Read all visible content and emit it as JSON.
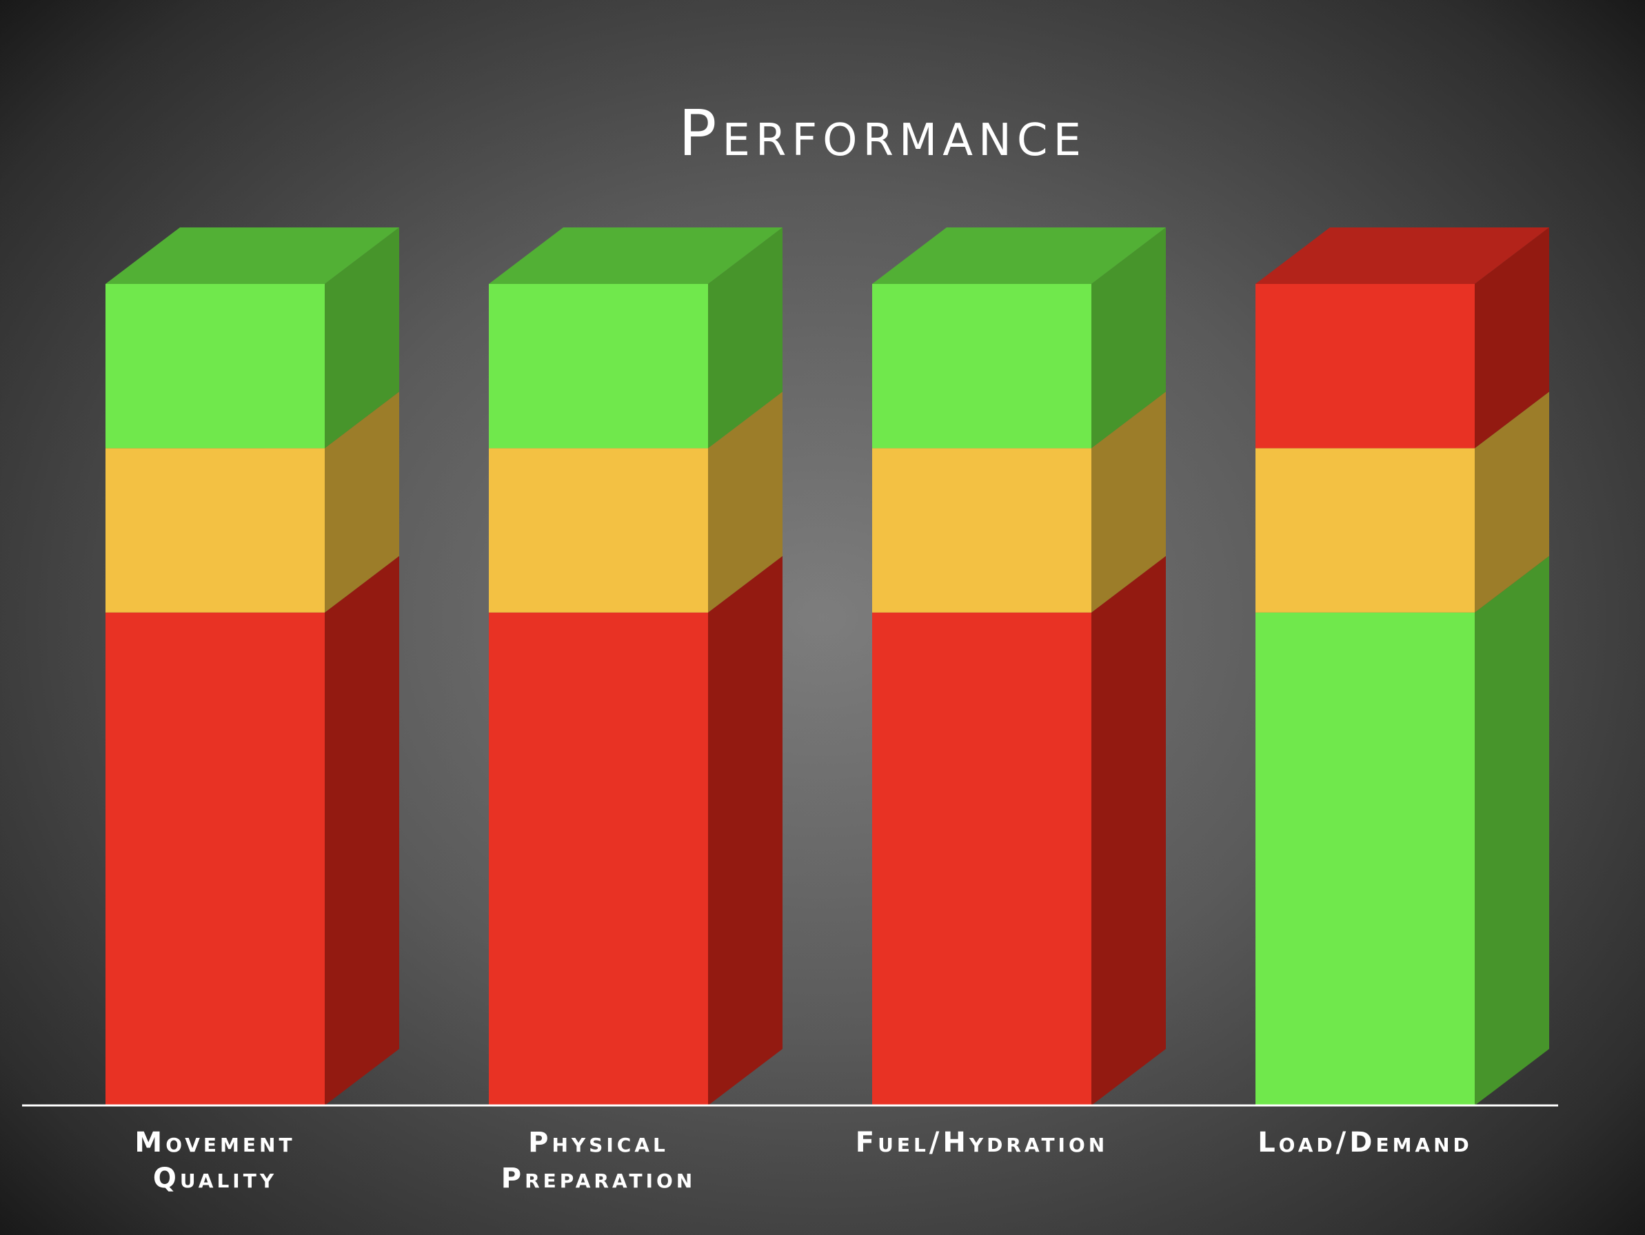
{
  "chart_data": {
    "type": "bar",
    "stacked": true,
    "style": "3d",
    "title": "Performance",
    "categories": [
      "Movement\nQuality",
      "Physical\nPreparation",
      "Fuel/Hydration",
      "Load/Demand"
    ],
    "segments_bottom_to_top": [
      {
        "colors": [
          "red",
          "red",
          "red",
          "green"
        ],
        "values": [
          3,
          3,
          3,
          3
        ]
      },
      {
        "colors": [
          "yellow",
          "yellow",
          "yellow",
          "yellow"
        ],
        "values": [
          1,
          1,
          1,
          1
        ]
      },
      {
        "colors": [
          "green",
          "green",
          "green",
          "red"
        ],
        "values": [
          1,
          1,
          1,
          1
        ]
      }
    ],
    "ylim": [
      0,
      5
    ],
    "grid": false,
    "legend": "none"
  },
  "palette": {
    "green": {
      "front": "#70e84c",
      "side": "#47952b",
      "top": "#52b035"
    },
    "yellow": {
      "front": "#f3c143",
      "side": "#9c7d29",
      "top": "#c9a23a"
    },
    "red": {
      "front": "#e83224",
      "side": "#931a11",
      "top": "#b3231a"
    },
    "axis": "#ffffff",
    "label": "#ffffff"
  }
}
